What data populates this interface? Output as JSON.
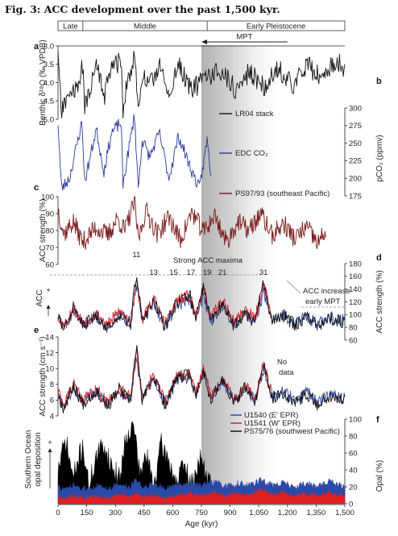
{
  "figure_title": "Fig. 3: ACC development over the past 1,500 kyr.",
  "epochs": [
    {
      "name": "Late",
      "from": 0,
      "to": 130
    },
    {
      "name": "Middle",
      "from": 130,
      "to": 780
    },
    {
      "name": "Early Pleistocene",
      "from": 780,
      "to": 1500
    }
  ],
  "mpt_label": "MPT",
  "shade_range": [
    750,
    1200
  ],
  "chart_data": {
    "type": "line",
    "x_axis": {
      "label": "Age (kyr)",
      "range": [
        0,
        1500
      ],
      "ticks": [
        0,
        150,
        300,
        450,
        600,
        750,
        900,
        1050,
        1200,
        1350,
        1500
      ],
      "tick_labels": [
        "0",
        "150",
        "300",
        "450",
        "600",
        "750",
        "900",
        "1,050",
        "1,200",
        "1,350",
        "1,500"
      ]
    },
    "panels": [
      {
        "id": "a",
        "panel_label": "a",
        "ylabel": "Benthic δ¹⁸O (‰ VPDB)",
        "axis_side": "left",
        "inverted": true,
        "ylim": [
          3.0,
          5.0
        ],
        "ticks": [
          3.0,
          3.5,
          4.0,
          4.5,
          5.0
        ],
        "tick_labels": [
          "3.0",
          "3.5",
          "4.0",
          "4.5",
          "5.0"
        ],
        "series": [
          {
            "name": "LR04 stack",
            "color": "#111111",
            "x": [
              0,
              18,
              60,
              110,
              125,
              140,
              200,
              240,
              280,
              330,
              340,
              360,
              400,
              420,
              440,
              480,
              530,
              580,
              630,
              700,
              790,
              860,
              930,
              1000,
              1080,
              1150,
              1230,
              1300,
              1380,
              1450,
              1500
            ],
            "y": [
              3.3,
              4.8,
              4.3,
              4.2,
              3.2,
              4.7,
              3.5,
              4.4,
              3.6,
              3.4,
              4.7,
              4.1,
              3.2,
              4.8,
              3.8,
              4.1,
              3.5,
              4.4,
              3.5,
              4.2,
              3.8,
              3.7,
              4.2,
              3.7,
              4.1,
              3.6,
              4.1,
              3.5,
              3.9,
              3.4,
              3.6
            ]
          }
        ]
      },
      {
        "id": "b",
        "panel_label": "b",
        "ylabel": "pCO₂ (ppmv)",
        "axis_side": "right",
        "ylim": [
          175,
          300
        ],
        "ticks": [
          175,
          200,
          225,
          250,
          275,
          300
        ],
        "tick_labels": [
          "175",
          "200",
          "225",
          "250",
          "275",
          "300"
        ],
        "series": [
          {
            "name": "EDC CO₂",
            "color": "#2a3a9a",
            "x": [
              0,
              18,
              60,
              125,
              140,
              200,
              240,
              280,
              330,
              340,
              360,
              400,
              420,
              440,
              480,
              530,
              580,
              630,
              700,
              740,
              780,
              800
            ],
            "y": [
              280,
              185,
              200,
              280,
              195,
              270,
              210,
              265,
              280,
              190,
              225,
              290,
              185,
              255,
              230,
              265,
              200,
              260,
              210,
              185,
              255,
              205
            ]
          }
        ]
      },
      {
        "id": "c",
        "panel_label": "c",
        "ylabel": "ACC strength (%)",
        "axis_side": "left",
        "ylim": [
          60,
          100
        ],
        "ticks": [
          60,
          70,
          80,
          90,
          100
        ],
        "tick_labels": [
          "60",
          "70",
          "80",
          "90",
          "100"
        ],
        "series": [
          {
            "name": "PS97/93 (southeast Pacific)",
            "color": "#7a1a1a",
            "x": [
              0,
              30,
              80,
              130,
              200,
              260,
              310,
              350,
              400,
              420,
              460,
              520,
              580,
              640,
              700,
              760,
              820,
              880,
              940,
              1000,
              1060,
              1120,
              1180,
              1240,
              1300,
              1360,
              1400
            ],
            "y": [
              93,
              78,
              85,
              73,
              82,
              77,
              87,
              80,
              97,
              75,
              92,
              78,
              88,
              74,
              91,
              79,
              89,
              73,
              85,
              80,
              90,
              77,
              84,
              75,
              82,
              72,
              80
            ]
          }
        ]
      },
      {
        "id": "d",
        "panel_label": "d",
        "ylabel": "ACC strength (%)",
        "left_label": "ACC",
        "axis_side": "right",
        "ylim": [
          60,
          180
        ],
        "ticks": [
          60,
          80,
          100,
          120,
          140,
          160,
          180
        ],
        "tick_labels": [
          "60",
          "80",
          "100",
          "120",
          "140",
          "160",
          "180"
        ],
        "annotations": [
          "Strong ACC maxima",
          "ACC increase (early MPT)"
        ],
        "mis_labels": [
          {
            "label": "11",
            "x": 410
          },
          {
            "label": "13",
            "x": 500
          },
          {
            "label": "15",
            "x": 605
          },
          {
            "label": "17",
            "x": 695
          },
          {
            "label": "19",
            "x": 780
          },
          {
            "label": "21",
            "x": 860
          },
          {
            "label": "31",
            "x": 1075
          }
        ],
        "series": [
          {
            "name": "U1540 (E' EPR)",
            "color": "#2a4aa8",
            "x": [
              0,
              30,
              80,
              130,
              200,
              260,
              320,
              380,
              410,
              440,
              500,
              560,
              620,
              690,
              720,
              760,
              800,
              860,
              920,
              980,
              1030,
              1075,
              1120,
              1180,
              1240,
              1300,
              1360,
              1420,
              1500
            ],
            "y": [
              95,
              78,
              105,
              85,
              98,
              80,
              100,
              88,
              150,
              90,
              118,
              82,
              115,
              125,
              95,
              128,
              90,
              115,
              85,
              102,
              88,
              135,
              92,
              100,
              86,
              98,
              84,
              96,
              90
            ]
          },
          {
            "name": "U1541 (W' EPR)",
            "color": "#e02020",
            "x": [
              0,
              30,
              80,
              130,
              200,
              260,
              320,
              380,
              410,
              440,
              500,
              560,
              620,
              690,
              720,
              760,
              800,
              860,
              920,
              980,
              1030,
              1075,
              1120
            ],
            "y": [
              100,
              80,
              110,
              88,
              102,
              84,
              105,
              90,
              160,
              92,
              125,
              86,
              120,
              130,
              98,
              140,
              95,
              122,
              88,
              108,
              92,
              150,
              96
            ]
          },
          {
            "name": "PS75/76 (southwest Pacific)",
            "color": "#111111",
            "x": [
              0,
              30,
              80,
              130,
              200,
              260,
              320,
              380,
              410,
              440,
              500,
              560,
              620,
              690,
              720,
              760,
              800,
              860,
              920,
              980,
              1030,
              1075,
              1120,
              1180,
              1240,
              1300,
              1360,
              1420,
              1500
            ],
            "y": [
              98,
              76,
              112,
              82,
              100,
              78,
              102,
              86,
              165,
              88,
              122,
              80,
              118,
              132,
              92,
              145,
              88,
              118,
              82,
              104,
              86,
              148,
              90,
              98,
              84,
              96,
              82,
              94,
              88
            ]
          }
        ]
      },
      {
        "id": "e",
        "panel_label": "e",
        "ylabel": "ACC strength (cm s⁻¹)",
        "axis_side": "left",
        "ylim": [
          4,
          14
        ],
        "ticks": [
          4,
          6,
          8,
          10,
          12,
          14
        ],
        "tick_labels": [
          "4",
          "6",
          "8",
          "10",
          "12",
          "14"
        ],
        "annotations": [
          "No data"
        ],
        "series": [
          {
            "name": "U1540 (E' EPR)",
            "color": "#2a4aa8",
            "x": [
              0,
              30,
              80,
              130,
              200,
              260,
              320,
              380,
              410,
              440,
              500,
              560,
              620,
              690,
              720,
              760,
              800,
              860,
              920,
              980,
              1030,
              1075,
              1120,
              1180,
              1240,
              1300,
              1360,
              1420,
              1500
            ],
            "y": [
              6.5,
              5.2,
              7.5,
              5.8,
              7.0,
              5.4,
              7.2,
              6.0,
              11.5,
              6.2,
              8.8,
              5.6,
              8.4,
              9.0,
              6.6,
              9.4,
              6.2,
              8.4,
              5.8,
              7.4,
              6.0,
              10.0,
              6.4,
              7.2,
              5.8,
              7.0,
              5.6,
              6.8,
              6.2
            ]
          },
          {
            "name": "U1541 (W' EPR)",
            "color": "#e02020",
            "x": [
              0,
              30,
              80,
              130,
              200,
              260,
              320,
              380,
              410,
              440,
              500,
              560,
              620,
              690,
              720,
              760,
              800,
              860,
              920,
              980,
              1030,
              1075,
              1120
            ],
            "y": [
              6.8,
              5.4,
              8.0,
              6.0,
              7.4,
              5.6,
              7.6,
              6.2,
              12.5,
              6.4,
              9.2,
              5.8,
              8.8,
              9.6,
              6.8,
              10.2,
              6.4,
              8.8,
              6.0,
              7.8,
              6.2,
              10.8,
              6.6
            ]
          },
          {
            "name": "PS75/76 (southwest Pacific)",
            "color": "#111111",
            "x": [
              0,
              30,
              80,
              130,
              200,
              260,
              320,
              380,
              410,
              440,
              500,
              560,
              620,
              690,
              720,
              760,
              800,
              860,
              920,
              980,
              1030,
              1075,
              1120,
              1180,
              1240,
              1300,
              1360,
              1420,
              1500
            ],
            "y": [
              6.6,
              5.0,
              7.8,
              5.6,
              7.2,
              5.2,
              7.4,
              5.8,
              13.0,
              6.0,
              9.0,
              5.4,
              8.6,
              9.4,
              6.4,
              9.8,
              6.0,
              8.6,
              5.6,
              7.6,
              5.8,
              10.4,
              6.2,
              7.0,
              5.6,
              6.8,
              5.4,
              6.6,
              6.0
            ]
          }
        ]
      },
      {
        "id": "f",
        "panel_label": "f",
        "ylabel": "Opal (%)",
        "left_label": "Southern Ocean opal deposition",
        "axis_side": "right",
        "type": "area",
        "ylim": [
          0,
          100
        ],
        "ticks": [
          0,
          20,
          40,
          60,
          80,
          100
        ],
        "tick_labels": [
          "0",
          "20",
          "40",
          "60",
          "80",
          "100"
        ],
        "series": [
          {
            "name": "PS75/76 (southwest Pacific)",
            "color": "#000000",
            "x": [
              0,
              40,
              80,
              130,
              160,
              200,
              240,
              280,
              320,
              360,
              400,
              430,
              460,
              500,
              540,
              580,
              620,
              660,
              700,
              740,
              780,
              800
            ],
            "y": [
              40,
              75,
              30,
              70,
              20,
              55,
              70,
              45,
              30,
              85,
              90,
              30,
              60,
              20,
              70,
              50,
              25,
              45,
              20,
              55,
              30,
              22
            ]
          },
          {
            "name": "U1540 (E' EPR)",
            "color": "#2a4aa8",
            "x": [
              0,
              40,
              80,
              130,
              200,
              260,
              320,
              380,
              410,
              440,
              500,
              560,
              620,
              690,
              760,
              820,
              880,
              940,
              1000,
              1060,
              1120,
              1180,
              1240,
              1300,
              1360,
              1420,
              1500
            ],
            "y": [
              20,
              16,
              22,
              17,
              21,
              18,
              23,
              19,
              30,
              20,
              24,
              18,
              22,
              25,
              22,
              26,
              20,
              24,
              22,
              28,
              22,
              25,
              20,
              24,
              21,
              26,
              20
            ]
          },
          {
            "name": "U1541 (W' EPR)",
            "color": "#e02020",
            "x": [
              0,
              40,
              80,
              130,
              200,
              260,
              320,
              380,
              410,
              440,
              500,
              560,
              620,
              690,
              760,
              820,
              880,
              940,
              1000,
              1060,
              1120,
              1180,
              1240,
              1300,
              1360,
              1420,
              1500
            ],
            "y": [
              8,
              6,
              10,
              7,
              9,
              6,
              11,
              8,
              14,
              8,
              10,
              7,
              9,
              12,
              10,
              14,
              9,
              12,
              10,
              16,
              11,
              14,
              9,
              12,
              10,
              13,
              9
            ]
          }
        ]
      }
    ]
  }
}
